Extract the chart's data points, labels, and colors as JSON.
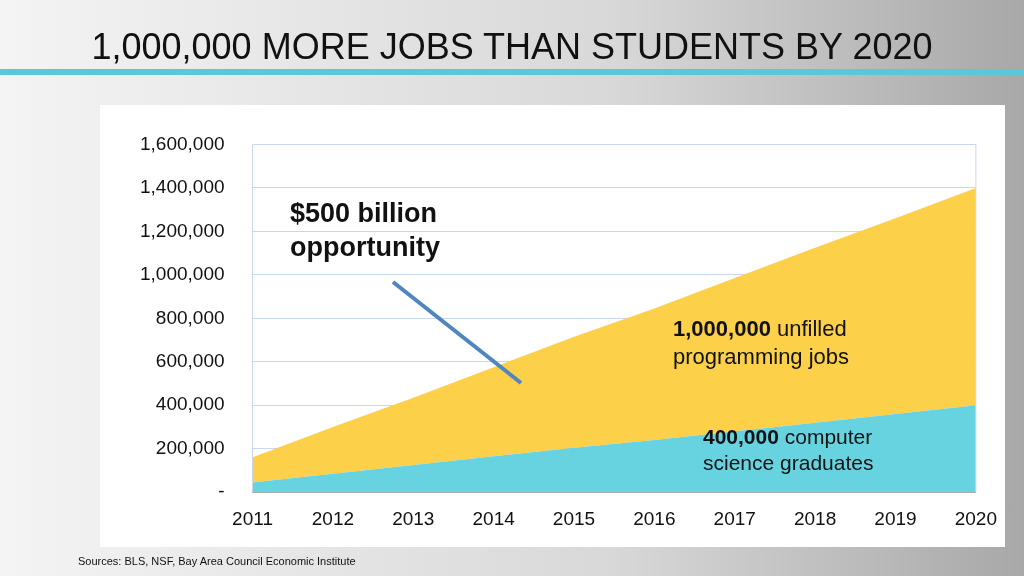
{
  "chart_data": {
    "type": "area",
    "stacked": true,
    "title": "1,000,000 MORE JOBS THAN STUDENTS BY 2020",
    "categories": [
      "2011",
      "2012",
      "2013",
      "2014",
      "2015",
      "2016",
      "2017",
      "2018",
      "2019",
      "2020"
    ],
    "series": [
      {
        "color": "#67d3e0",
        "values": [
          45000,
          85000,
          125000,
          165000,
          205000,
          240000,
          280000,
          320000,
          360000,
          400000
        ]
      },
      {
        "color": "#fdd04a",
        "values": [
          115000,
          215000,
          310000,
          410000,
          510000,
          605000,
          705000,
          805000,
          900000,
          1000000
        ]
      }
    ],
    "ylim": [
      0,
      1600000
    ],
    "yticks": [
      {
        "value": 0,
        "label": "-"
      },
      {
        "value": 200000,
        "label": "200,000"
      },
      {
        "value": 400000,
        "label": "400,000"
      },
      {
        "value": 600000,
        "label": "600,000"
      },
      {
        "value": 800000,
        "label": "800,000"
      },
      {
        "value": 1000000,
        "label": "1,000,000"
      },
      {
        "value": 1200000,
        "label": "1,200,000"
      },
      {
        "value": 1400000,
        "label": "1,400,000"
      },
      {
        "value": 1600000,
        "label": "1,600,000"
      }
    ],
    "grid": "y",
    "legend": false,
    "annotations": [
      "$500 billion opportunity",
      "1,000,000 unfilled programming jobs",
      "400,000 computer science graduates",
      "Sources: BLS, NSF, Bay Area Council Economic Institute"
    ]
  }
}
